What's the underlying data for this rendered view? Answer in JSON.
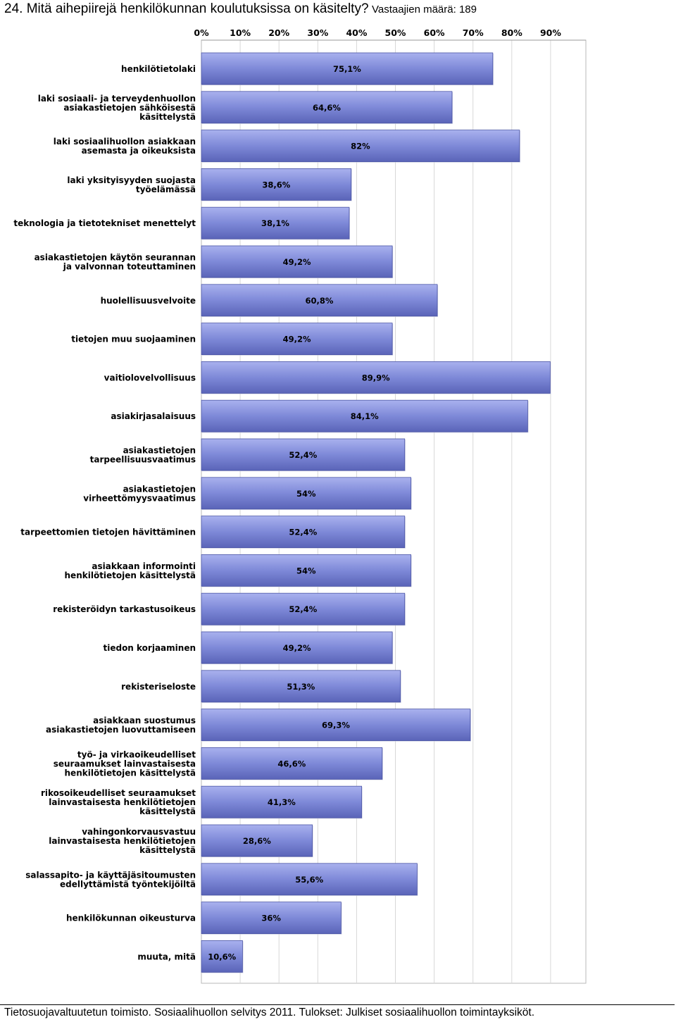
{
  "heading": {
    "question": "24. Mitä aihepiirejä henkilökunnan koulutuksissa on käsitelty?",
    "respondents_label": "Vastaajien määrä: 189"
  },
  "chart_data": {
    "type": "bar",
    "orientation": "horizontal",
    "title": "24. Mitä aihepiirejä henkilökunnan koulutuksissa on käsitelty?",
    "xlim": [
      0,
      100
    ],
    "ticks": [
      "0%",
      "10%",
      "20%",
      "30%",
      "40%",
      "50%",
      "60%",
      "70%",
      "80%",
      "90%"
    ],
    "grid": true,
    "bar_color": "#7b86d6",
    "categories": [
      [
        "henkilötietolaki"
      ],
      [
        "laki sosiaali- ja terveydenhuollon",
        "asiakastietojen sähköisestä",
        "käsittelystä"
      ],
      [
        "laki sosiaalihuollon asiakkaan",
        "asemasta ja oikeuksista"
      ],
      [
        "laki yksityisyyden suojasta",
        "työelämässä"
      ],
      [
        "teknologia ja tietotekniset menettelyt"
      ],
      [
        "asiakastietojen käytön seurannan",
        "ja valvonnan toteuttaminen"
      ],
      [
        "huolellisuusvelvoite"
      ],
      [
        "tietojen muu suojaaminen"
      ],
      [
        "vaitiolovelvollisuus"
      ],
      [
        "asiakirjasalaisuus"
      ],
      [
        "asiakastietojen",
        "tarpeellisuusvaatimus"
      ],
      [
        "asiakastietojen",
        "virheettömyysvaatimus"
      ],
      [
        "tarpeettomien tietojen hävittäminen"
      ],
      [
        "asiakkaan informointi",
        "henkilötietojen käsittelystä"
      ],
      [
        "rekisteröidyn tarkastusoikeus"
      ],
      [
        "tiedon korjaaminen"
      ],
      [
        "rekisteriseloste"
      ],
      [
        "asiakkaan suostumus",
        "asiakastietojen luovuttamiseen"
      ],
      [
        "työ- ja virkaoikeudelliset",
        "seuraamukset lainvastaisesta",
        "henkilötietojen käsittelystä"
      ],
      [
        "rikosoikeudelliset seuraamukset",
        "lainvastaisesta henkilötietojen",
        "käsittelystä"
      ],
      [
        "vahingonkorvausvastuu",
        "lainvastaisesta henkilötietojen",
        "käsittelystä"
      ],
      [
        "salassapito- ja käyttäjäsitoumusten",
        "edellyttämistä työntekijöiltä"
      ],
      [
        "henkilökunnan oikeusturva"
      ],
      [
        "muuta, mitä"
      ]
    ],
    "values": [
      75.1,
      64.6,
      82,
      38.6,
      38.1,
      49.2,
      60.8,
      49.2,
      89.9,
      84.1,
      52.4,
      54,
      52.4,
      54,
      52.4,
      49.2,
      51.3,
      69.3,
      46.6,
      41.3,
      28.6,
      55.6,
      36,
      10.6
    ],
    "value_labels": [
      "75,1%",
      "64,6%",
      "82%",
      "38,6%",
      "38,1%",
      "49,2%",
      "60,8%",
      "49,2%",
      "89,9%",
      "84,1%",
      "52,4%",
      "54%",
      "52,4%",
      "54%",
      "52,4%",
      "49,2%",
      "51,3%",
      "69,3%",
      "46,6%",
      "41,3%",
      "28,6%",
      "55,6%",
      "36%",
      "10,6%"
    ]
  },
  "footer": {
    "source": "Tietosuojavaltuutetun toimisto. Sosiaalihuollon selvitys 2011. Tulokset: Julkiset sosiaalihuollon toimintayksiköt."
  }
}
